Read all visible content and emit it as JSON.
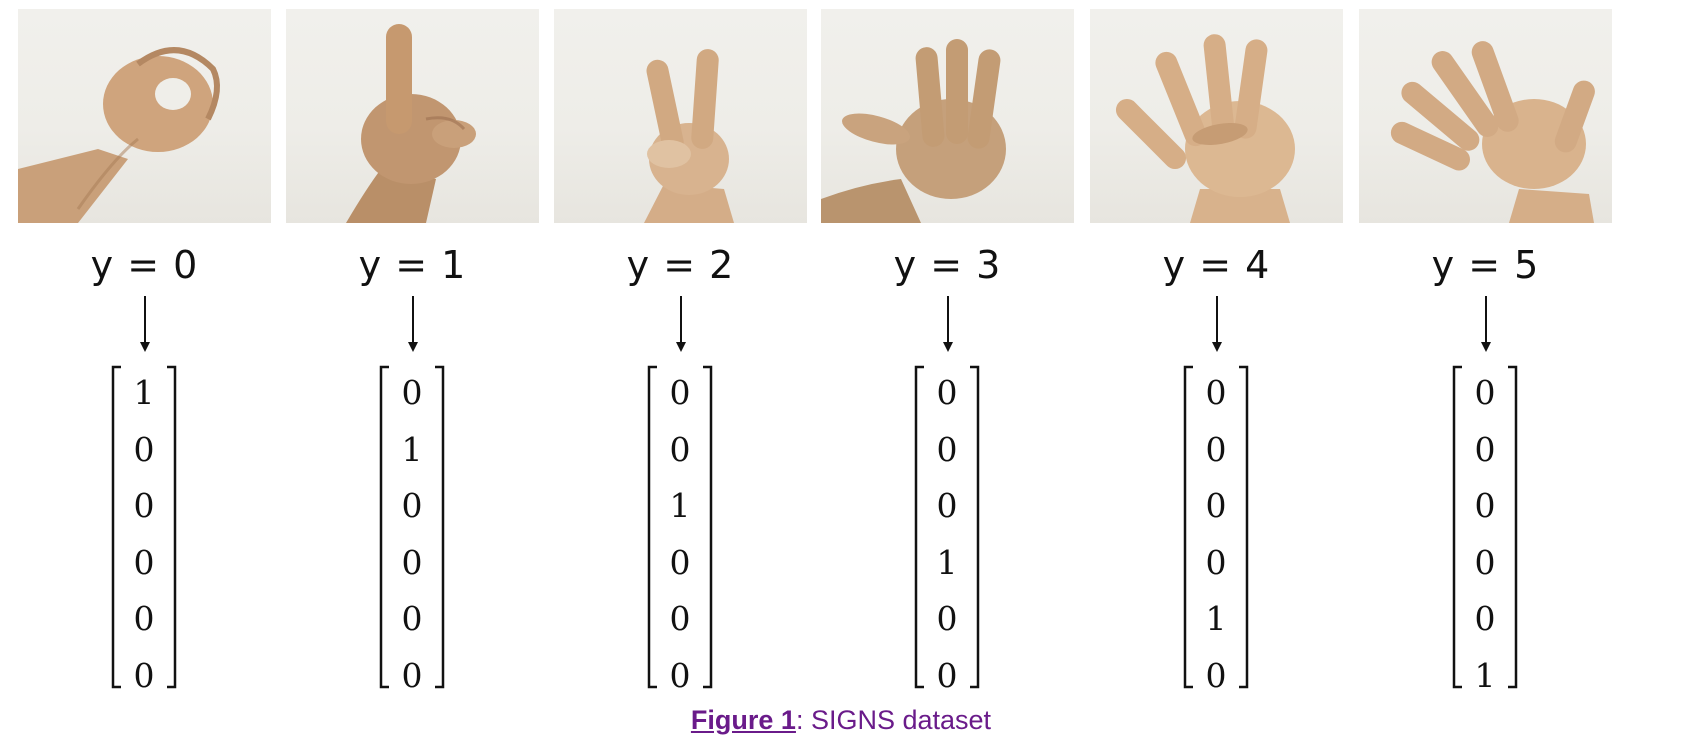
{
  "figure": {
    "panels": [
      {
        "label": "y = 0",
        "vector": [
          "1",
          "0",
          "0",
          "0",
          "0",
          "0"
        ],
        "fingers_up": 0
      },
      {
        "label": "y = 1",
        "vector": [
          "0",
          "1",
          "0",
          "0",
          "0",
          "0"
        ],
        "fingers_up": 1
      },
      {
        "label": "y = 2",
        "vector": [
          "0",
          "0",
          "1",
          "0",
          "0",
          "0"
        ],
        "fingers_up": 2
      },
      {
        "label": "y = 3",
        "vector": [
          "0",
          "0",
          "0",
          "1",
          "0",
          "0"
        ],
        "fingers_up": 3
      },
      {
        "label": "y = 4",
        "vector": [
          "0",
          "0",
          "0",
          "0",
          "1",
          "0"
        ],
        "fingers_up": 4
      },
      {
        "label": "y = 5",
        "vector": [
          "0",
          "0",
          "0",
          "0",
          "0",
          "1"
        ],
        "fingers_up": 5
      }
    ],
    "caption": {
      "ref": "Figure 1",
      "separator": ": ",
      "text": "SIGNS dataset"
    },
    "colors": {
      "skin": "#caa07a",
      "skin_shadow": "#a87b55",
      "background": "#efeee9",
      "caption": "#6a1b8a",
      "ink": "#111111"
    }
  }
}
